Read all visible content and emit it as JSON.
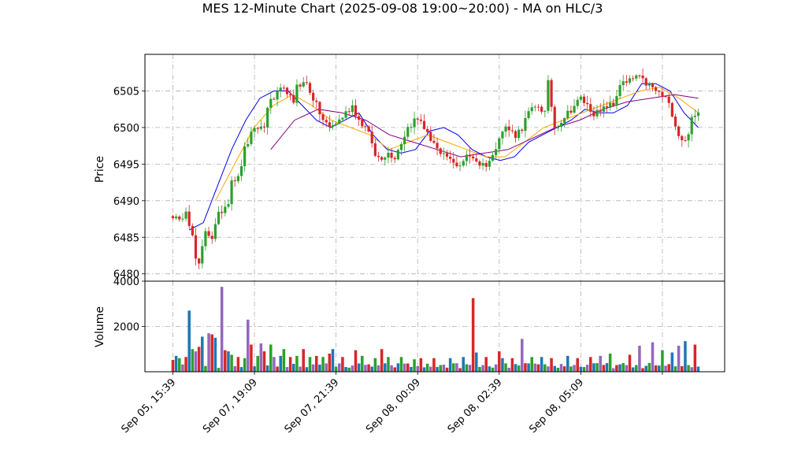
{
  "chart_data": {
    "type": "candlestick",
    "title": "MES 12-Minute Chart (2025-09-08 19:00~20:00) - MA on HLC/3",
    "x_tick_labels": [
      "Sep 05, 15:39",
      "Sep 07, 19:09",
      "Sep 07, 21:39",
      "Sep 08, 00:09",
      "Sep 08, 02:39",
      "Sep 08, 05:09"
    ],
    "price_panel": {
      "ylabel": "Price",
      "ylim": [
        6479,
        6510
      ],
      "yticks": [
        6480,
        6485,
        6490,
        6495,
        6500,
        6505
      ],
      "up_color": "#2ca02c",
      "down_color": "#d62728",
      "anchors": [
        [
          0,
          6488
        ],
        [
          2,
          6487
        ],
        [
          4,
          6489
        ],
        [
          6,
          6485
        ],
        [
          7,
          6482
        ],
        [
          8,
          6481
        ],
        [
          10,
          6486
        ],
        [
          12,
          6485
        ],
        [
          14,
          6488
        ],
        [
          17,
          6490
        ],
        [
          18,
          6493
        ],
        [
          20,
          6493
        ],
        [
          22,
          6497
        ],
        [
          24,
          6499
        ],
        [
          26,
          6500
        ],
        [
          28,
          6500
        ],
        [
          29,
          6503
        ],
        [
          31,
          6504
        ],
        [
          33,
          6505
        ],
        [
          35,
          6505
        ],
        [
          37,
          6503
        ],
        [
          38,
          6506
        ],
        [
          41,
          6506
        ],
        [
          44,
          6503
        ],
        [
          46,
          6501
        ],
        [
          48,
          6500
        ],
        [
          51,
          6501
        ],
        [
          53,
          6502
        ],
        [
          55,
          6503
        ],
        [
          57,
          6501
        ],
        [
          59,
          6500
        ],
        [
          61,
          6498
        ],
        [
          62,
          6496
        ],
        [
          64,
          6496
        ],
        [
          66,
          6496.5
        ],
        [
          68,
          6496
        ],
        [
          70,
          6498
        ],
        [
          72,
          6500
        ],
        [
          74,
          6501
        ],
        [
          76,
          6501
        ],
        [
          78,
          6499
        ],
        [
          80,
          6498
        ],
        [
          82,
          6496
        ],
        [
          84,
          6496
        ],
        [
          86,
          6495
        ],
        [
          88,
          6495
        ],
        [
          90,
          6496
        ],
        [
          92,
          6496
        ],
        [
          94,
          6495
        ],
        [
          96,
          6495
        ],
        [
          98,
          6496
        ],
        [
          100,
          6499
        ],
        [
          102,
          6500
        ],
        [
          105,
          6499
        ],
        [
          107,
          6500
        ],
        [
          109,
          6502
        ],
        [
          112,
          6503
        ],
        [
          114,
          6502
        ],
        [
          115,
          6506
        ],
        [
          117,
          6500
        ],
        [
          119,
          6501
        ],
        [
          121,
          6502
        ],
        [
          123,
          6503
        ],
        [
          125,
          6504
        ],
        [
          127,
          6503
        ],
        [
          129,
          6502
        ],
        [
          131,
          6502
        ],
        [
          133,
          6503
        ],
        [
          135,
          6503
        ],
        [
          137,
          6506
        ],
        [
          139,
          6506
        ],
        [
          142,
          6507
        ],
        [
          145,
          6506
        ],
        [
          148,
          6505
        ],
        [
          151,
          6504
        ],
        [
          153,
          6502
        ],
        [
          155,
          6499
        ],
        [
          157,
          6498
        ],
        [
          159,
          6501
        ],
        [
          161,
          6502
        ]
      ],
      "moving_averages": [
        {
          "color": "#0000ee",
          "start": 5,
          "window": 6,
          "values": [
            6486,
            6487,
            6492,
            6497,
            6501,
            6504,
            6505,
            6505,
            6503,
            6501,
            6500,
            6501,
            6502,
            6499,
            6497,
            6496.5,
            6497,
            6499.5,
            6500,
            6499,
            6497,
            6496,
            6495.5,
            6496,
            6498,
            6499,
            6500,
            6501,
            6502.5,
            6502,
            6502,
            6503,
            6506,
            6506,
            6505,
            6502,
            6500
          ]
        },
        {
          "color": "#ffa500",
          "start": 13,
          "window": 13,
          "values": [
            6490,
            6495,
            6500,
            6503,
            6504.5,
            6503,
            6501,
            6500,
            6499,
            6497,
            6498,
            6499,
            6498,
            6497,
            6496,
            6496,
            6498,
            6500,
            6501,
            6502,
            6503,
            6504,
            6505,
            6505.5,
            6504,
            6502
          ]
        },
        {
          "color": "#800080",
          "start": 30,
          "window": 25,
          "values": [
            6497,
            6501,
            6502.5,
            6502,
            6501,
            6499,
            6498,
            6497,
            6496,
            6496.5,
            6497,
            6498.5,
            6500,
            6501,
            6502.5,
            6503.5,
            6504,
            6504.5,
            6504
          ]
        }
      ]
    },
    "volume_panel": {
      "ylabel": "Volume",
      "ylim": [
        0,
        4000
      ],
      "yticks": [
        2000,
        4000
      ],
      "colors": [
        "#d62728",
        "#1f77b4",
        "#2ca02c",
        "#9467bd"
      ],
      "base_level": 260,
      "spikes": [
        [
          0,
          520
        ],
        [
          1,
          700
        ],
        [
          2,
          600
        ],
        [
          4,
          650
        ],
        [
          5,
          2700
        ],
        [
          6,
          1000
        ],
        [
          7,
          900
        ],
        [
          8,
          1100
        ],
        [
          9,
          1550
        ],
        [
          11,
          1700
        ],
        [
          12,
          1650
        ],
        [
          13,
          1500
        ],
        [
          15,
          3750
        ],
        [
          16,
          950
        ],
        [
          17,
          900
        ],
        [
          18,
          750
        ],
        [
          20,
          650
        ],
        [
          22,
          600
        ],
        [
          23,
          2300
        ],
        [
          24,
          1200
        ],
        [
          26,
          700
        ],
        [
          27,
          1250
        ],
        [
          28,
          900
        ],
        [
          30,
          1200
        ],
        [
          31,
          650
        ],
        [
          33,
          700
        ],
        [
          34,
          1000
        ],
        [
          36,
          650
        ],
        [
          38,
          700
        ],
        [
          40,
          1000
        ],
        [
          42,
          650
        ],
        [
          44,
          700
        ],
        [
          46,
          650
        ],
        [
          48,
          800
        ],
        [
          49,
          1000
        ],
        [
          52,
          650
        ],
        [
          56,
          950
        ],
        [
          58,
          700
        ],
        [
          62,
          600
        ],
        [
          64,
          1000
        ],
        [
          66,
          650
        ],
        [
          70,
          650
        ],
        [
          74,
          550
        ],
        [
          76,
          600
        ],
        [
          80,
          600
        ],
        [
          85,
          600
        ],
        [
          89,
          650
        ],
        [
          92,
          3250
        ],
        [
          93,
          850
        ],
        [
          96,
          650
        ],
        [
          100,
          900
        ],
        [
          101,
          600
        ],
        [
          104,
          600
        ],
        [
          107,
          1450
        ],
        [
          110,
          650
        ],
        [
          113,
          650
        ],
        [
          116,
          600
        ],
        [
          121,
          700
        ],
        [
          124,
          600
        ],
        [
          128,
          650
        ],
        [
          131,
          700
        ],
        [
          134,
          800
        ],
        [
          140,
          750
        ],
        [
          143,
          1150
        ],
        [
          147,
          1300
        ],
        [
          150,
          950
        ],
        [
          153,
          850
        ],
        [
          155,
          1150
        ],
        [
          157,
          1350
        ],
        [
          160,
          1200
        ]
      ]
    }
  }
}
